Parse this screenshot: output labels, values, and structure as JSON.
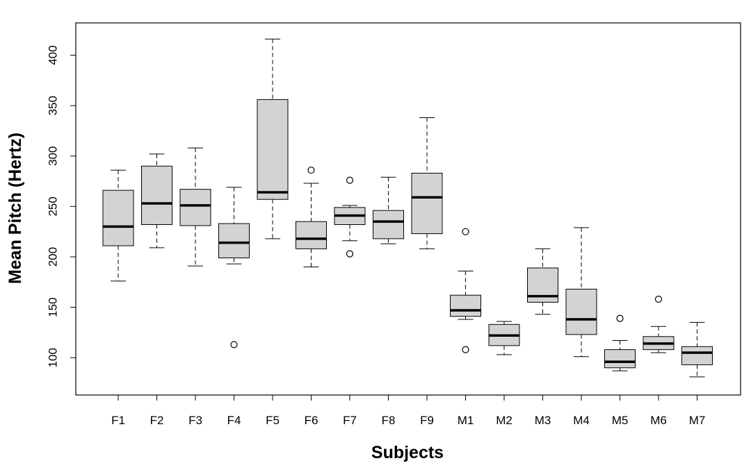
{
  "chart_data": {
    "type": "boxplot",
    "xlabel": "Subjects",
    "ylabel": "Mean Pitch (Hertz)",
    "ylim": [
      63,
      432
    ],
    "yticks": [
      100,
      150,
      200,
      250,
      300,
      350,
      400
    ],
    "colors": {
      "box_fill": "#d3d3d3",
      "stroke": "#000000"
    },
    "categories": [
      "F1",
      "F2",
      "F3",
      "F4",
      "F5",
      "F6",
      "F7",
      "F8",
      "F9",
      "M1",
      "M2",
      "M3",
      "M4",
      "M5",
      "M6",
      "M7"
    ],
    "boxes": [
      {
        "label": "F1",
        "whisker_low": 176,
        "q1": 211,
        "median": 230,
        "q3": 266,
        "whisker_high": 286,
        "outliers": []
      },
      {
        "label": "F2",
        "whisker_low": 209,
        "q1": 232,
        "median": 253,
        "q3": 290,
        "whisker_high": 302,
        "outliers": []
      },
      {
        "label": "F3",
        "whisker_low": 191,
        "q1": 231,
        "median": 251,
        "q3": 267,
        "whisker_high": 308,
        "outliers": []
      },
      {
        "label": "F4",
        "whisker_low": 193,
        "q1": 199,
        "median": 214,
        "q3": 233,
        "whisker_high": 269,
        "outliers": [
          113
        ]
      },
      {
        "label": "F5",
        "whisker_low": 218,
        "q1": 257,
        "median": 264,
        "q3": 356,
        "whisker_high": 416,
        "outliers": []
      },
      {
        "label": "F6",
        "whisker_low": 190,
        "q1": 208,
        "median": 218,
        "q3": 235,
        "whisker_high": 273,
        "outliers": [
          286
        ]
      },
      {
        "label": "F7",
        "whisker_low": 216,
        "q1": 232,
        "median": 241,
        "q3": 249,
        "whisker_high": 251,
        "outliers": [
          276,
          203
        ]
      },
      {
        "label": "F8",
        "whisker_low": 213,
        "q1": 218,
        "median": 235,
        "q3": 246,
        "whisker_high": 279,
        "outliers": []
      },
      {
        "label": "F9",
        "whisker_low": 208,
        "q1": 223,
        "median": 259,
        "q3": 283,
        "whisker_high": 338,
        "outliers": []
      },
      {
        "label": "M1",
        "whisker_low": 138,
        "q1": 141,
        "median": 147,
        "q3": 162,
        "whisker_high": 186,
        "outliers": [
          225,
          108
        ]
      },
      {
        "label": "M2",
        "whisker_low": 103,
        "q1": 112,
        "median": 122,
        "q3": 133,
        "whisker_high": 136,
        "outliers": []
      },
      {
        "label": "M3",
        "whisker_low": 143,
        "q1": 155,
        "median": 161,
        "q3": 189,
        "whisker_high": 208,
        "outliers": []
      },
      {
        "label": "M4",
        "whisker_low": 101,
        "q1": 123,
        "median": 138,
        "q3": 168,
        "whisker_high": 229,
        "outliers": []
      },
      {
        "label": "M5",
        "whisker_low": 87,
        "q1": 90,
        "median": 96,
        "q3": 108,
        "whisker_high": 117,
        "outliers": [
          139
        ]
      },
      {
        "label": "M6",
        "whisker_low": 105,
        "q1": 108,
        "median": 114,
        "q3": 121,
        "whisker_high": 131,
        "outliers": [
          158
        ]
      },
      {
        "label": "M7",
        "whisker_low": 81,
        "q1": 93,
        "median": 105,
        "q3": 111,
        "whisker_high": 135,
        "outliers": []
      }
    ]
  }
}
